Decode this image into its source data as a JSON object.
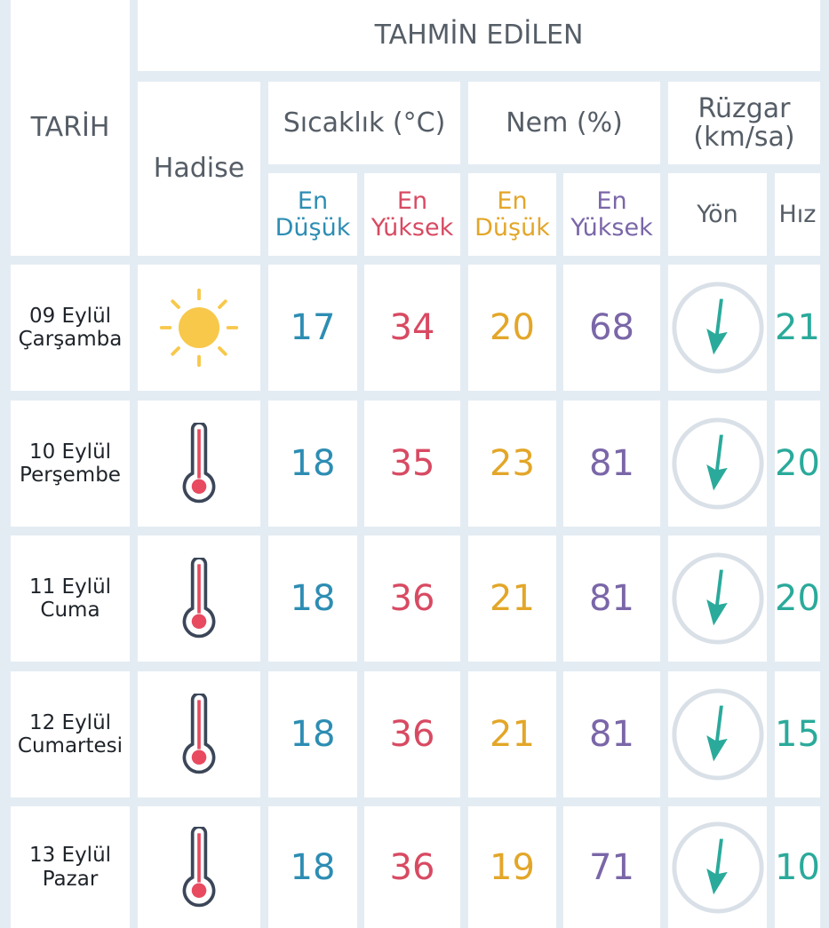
{
  "header": {
    "title": "TAHMİN EDİLEN",
    "date": "TARİH",
    "event": "Hadise",
    "temperature": "Sıcaklık (°C)",
    "humidity": "Nem (%)",
    "wind": "Rüzgar (km/sa)",
    "temp_min": "En Düşük",
    "temp_max": "En Yüksek",
    "hum_min": "En Düşük",
    "hum_max": "En Yüksek",
    "direction": "Yön",
    "speed": "Hız"
  },
  "table": {
    "rows": [
      {
        "date": "09 Eylül",
        "day": "Çarşamba",
        "temp_min": 17,
        "temp_max": 34,
        "hum_min": 20,
        "hum_max": 68,
        "wind_speed": 21
      },
      {
        "date": "10 Eylül",
        "day": "Perşembe",
        "temp_min": 18,
        "temp_max": 35,
        "hum_min": 23,
        "hum_max": 81,
        "wind_speed": 20
      },
      {
        "date": "11 Eylül",
        "day": "Cuma",
        "temp_min": 18,
        "temp_max": 36,
        "hum_min": 21,
        "hum_max": 81,
        "wind_speed": 20
      },
      {
        "date": "12 Eylül",
        "day": "Cumartesi",
        "temp_min": 18,
        "temp_max": 36,
        "hum_min": 21,
        "hum_max": 81,
        "wind_speed": 15
      },
      {
        "date": "13 Eylül",
        "day": "Pazar",
        "temp_min": 18,
        "temp_max": 36,
        "hum_min": 19,
        "hum_max": 71,
        "wind_speed": 10
      }
    ]
  }
}
